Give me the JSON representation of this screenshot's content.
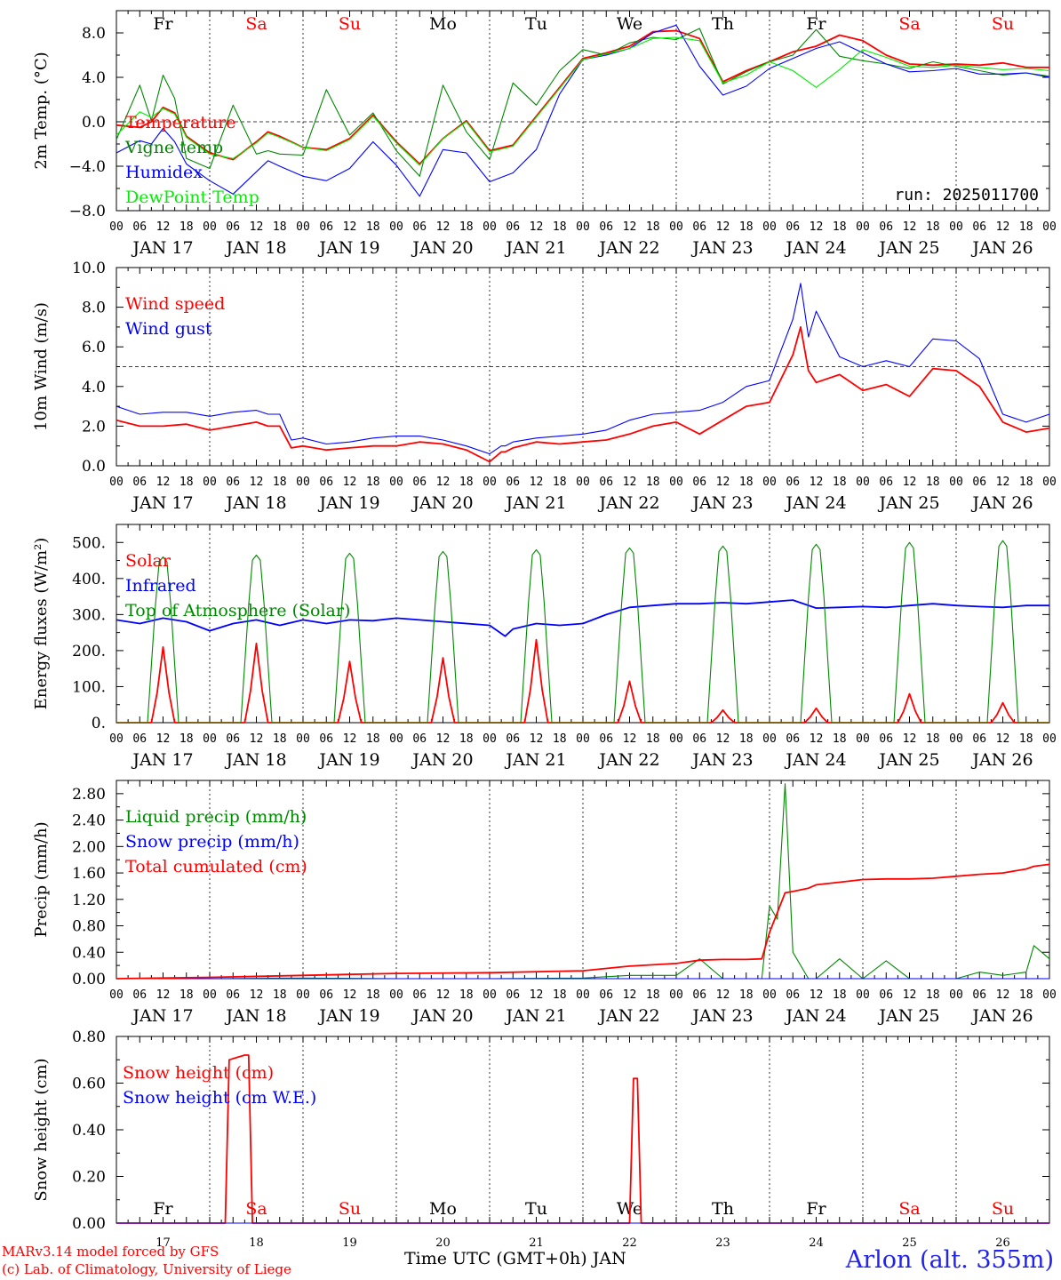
{
  "colors": {
    "red": "#ff0000",
    "blue": "#0000ff",
    "green": "#008800",
    "lime": "#00ee00",
    "black": "#000000",
    "axis": "#000000"
  },
  "days": [
    "Fr",
    "Sa",
    "Su",
    "Mo",
    "Tu",
    "We",
    "Th",
    "Fr",
    "Sa",
    "Su"
  ],
  "weekend_days": [
    1,
    2,
    8,
    9
  ],
  "date_labels": [
    "JAN 17",
    "JAN 18",
    "JAN 19",
    "JAN 20",
    "JAN 21",
    "JAN 22",
    "JAN 23",
    "JAN 24",
    "JAN 25",
    "JAN 26"
  ],
  "day_numbers": [
    "17",
    "18",
    "19",
    "20",
    "21",
    "22",
    "23",
    "24",
    "25",
    "26"
  ],
  "hour_ticks": [
    "00",
    "06",
    "12",
    "18"
  ],
  "final_hour_tick": "00",
  "footer": {
    "credit_line1": "MARv3.14 model forced by GFS",
    "credit_line2": "(c) Lab. of Climatology, University of Liege",
    "x_title": "Time UTC (GMT+0h) JAN",
    "station": "Arlon (alt. 355m)"
  },
  "chart_data": [
    {
      "type": "line",
      "ylabel": "2m Temp. (°C)",
      "ylim": [
        -8,
        10
      ],
      "y_ticks": [
        -8,
        -4,
        0,
        4,
        8
      ],
      "y_tick_labels": [
        "−8.0",
        "−4.0",
        "0.0",
        "4.0",
        "8.0"
      ],
      "ref_line": 0,
      "run_label": "run: 2025011700",
      "x_hours": [
        0,
        6,
        9,
        12,
        15,
        18,
        24,
        30,
        36,
        39,
        42,
        48,
        54,
        60,
        66,
        72,
        78,
        84,
        90,
        96,
        102,
        108,
        114,
        120,
        126,
        132,
        138,
        144,
        150,
        156,
        162,
        168,
        174,
        180,
        186,
        192,
        198,
        204,
        210,
        216,
        222,
        228,
        234,
        240
      ],
      "series": [
        {
          "name": "Temperature",
          "color": "red",
          "values": [
            -0.3,
            -0.5,
            0.0,
            1.3,
            0.8,
            -1.3,
            -2.8,
            -3.4,
            -1.8,
            -0.9,
            -1.3,
            -2.3,
            -2.5,
            -1.5,
            0.6,
            -1.8,
            -3.8,
            -1.5,
            0.1,
            -2.6,
            -2.1,
            0.5,
            3.1,
            5.7,
            6.2,
            6.8,
            8.1,
            8.2,
            7.5,
            3.6,
            4.6,
            5.4,
            6.3,
            6.8,
            7.8,
            7.3,
            6.0,
            5.2,
            5.1,
            5.2,
            5.1,
            5.3,
            4.9,
            4.9
          ]
        },
        {
          "name": "Vigne temp",
          "color": "green",
          "values": [
            -1.6,
            3.3,
            0.1,
            4.2,
            2.1,
            -3.3,
            -4.2,
            1.5,
            -2.9,
            -2.6,
            -2.9,
            -3.0,
            2.9,
            -1.2,
            0.8,
            -2.6,
            -4.9,
            3.3,
            -0.9,
            -3.4,
            3.5,
            1.5,
            4.6,
            6.5,
            6.0,
            7.1,
            7.6,
            7.4,
            8.4,
            3.4,
            4.5,
            5.4,
            6.0,
            8.3,
            5.9,
            5.5,
            5.2,
            4.8,
            5.4,
            5.0,
            4.6,
            4.2,
            4.4,
            4.1
          ]
        },
        {
          "name": "Humidex",
          "color": "blue",
          "values": [
            -2.8,
            -1.7,
            -2.0,
            -0.6,
            -1.8,
            -3.8,
            -5.3,
            -6.5,
            -4.5,
            -3.5,
            -4.0,
            -4.9,
            -5.3,
            -4.2,
            -1.8,
            -3.9,
            -6.7,
            -2.5,
            -2.8,
            -5.4,
            -4.6,
            -2.5,
            2.5,
            5.6,
            6.0,
            6.6,
            8.0,
            8.7,
            5.0,
            2.4,
            3.2,
            4.8,
            5.7,
            6.6,
            7.2,
            6.2,
            5.2,
            4.5,
            4.6,
            4.8,
            4.3,
            4.3,
            4.4,
            4.0
          ]
        },
        {
          "name": "DewPoint Temp",
          "color": "lime",
          "values": [
            -1.2,
            0.9,
            0.4,
            1.2,
            0.7,
            -1.4,
            -2.9,
            -3.3,
            -1.9,
            -1.0,
            -1.4,
            -2.3,
            -2.6,
            -1.6,
            0.5,
            -1.9,
            -3.9,
            -1.5,
            0.0,
            -2.7,
            -2.2,
            0.4,
            3.0,
            5.6,
            6.1,
            6.6,
            7.5,
            7.6,
            7.3,
            3.5,
            4.2,
            5.4,
            4.6,
            3.1,
            4.7,
            6.5,
            5.8,
            5.0,
            4.9,
            5.1,
            4.9,
            4.7,
            4.8,
            4.6
          ]
        }
      ]
    },
    {
      "type": "line",
      "ylabel": "10m Wind (m/s)",
      "ylim": [
        0,
        10
      ],
      "y_ticks": [
        0,
        2,
        4,
        6,
        8,
        10
      ],
      "y_tick_labels": [
        "0.0",
        "2.0",
        "4.0",
        "6.0",
        "8.0",
        "10.0"
      ],
      "ref_line": 5,
      "x_hours": [
        0,
        6,
        12,
        18,
        24,
        30,
        36,
        39,
        42,
        45,
        48,
        54,
        60,
        66,
        72,
        78,
        84,
        90,
        96,
        99,
        100,
        102,
        108,
        114,
        120,
        126,
        132,
        138,
        144,
        150,
        156,
        162,
        168,
        174,
        176,
        178,
        180,
        186,
        192,
        198,
        204,
        210,
        216,
        222,
        228,
        234,
        240
      ],
      "series": [
        {
          "name": "Wind speed",
          "color": "red",
          "values": [
            2.3,
            2.0,
            2.0,
            2.1,
            1.8,
            2.0,
            2.2,
            2.0,
            2.0,
            0.9,
            1.0,
            0.8,
            0.9,
            1.0,
            1.0,
            1.2,
            1.1,
            0.8,
            0.2,
            0.7,
            0.7,
            0.9,
            1.2,
            1.1,
            1.2,
            1.3,
            1.6,
            2.0,
            2.2,
            1.6,
            2.3,
            3.0,
            3.2,
            5.6,
            7.0,
            4.8,
            4.2,
            4.6,
            3.8,
            4.1,
            3.5,
            4.9,
            4.8,
            4.0,
            2.2,
            1.7,
            1.9
          ]
        },
        {
          "name": "Wind gust",
          "color": "blue",
          "values": [
            3.0,
            2.6,
            2.7,
            2.7,
            2.5,
            2.7,
            2.8,
            2.6,
            2.6,
            1.3,
            1.4,
            1.1,
            1.2,
            1.4,
            1.5,
            1.5,
            1.3,
            1.0,
            0.6,
            1.0,
            1.0,
            1.2,
            1.4,
            1.5,
            1.6,
            1.8,
            2.3,
            2.6,
            2.7,
            2.8,
            3.2,
            4.0,
            4.3,
            7.4,
            9.2,
            6.5,
            7.8,
            5.5,
            5.0,
            5.3,
            5.0,
            6.4,
            6.3,
            5.4,
            2.6,
            2.2,
            2.6
          ]
        }
      ]
    },
    {
      "type": "line",
      "ylabel": "Energy fluxes (W/m²)",
      "ylim": [
        0,
        550
      ],
      "y_ticks": [
        0,
        100,
        200,
        300,
        400,
        500
      ],
      "y_tick_labels": [
        "0.",
        "100.",
        "200.",
        "300.",
        "400.",
        "500."
      ],
      "daily_peaks": {
        "day_offsets": [
          0,
          24,
          48,
          72,
          96,
          120,
          144,
          168,
          192,
          216
        ],
        "solar": [
          210,
          220,
          170,
          180,
          230,
          115,
          35,
          40,
          80,
          55
        ],
        "toa": [
          460,
          465,
          470,
          475,
          480,
          485,
          490,
          495,
          500,
          505
        ],
        "toa_window": [
          8,
          16
        ],
        "solar_window": [
          9,
          15
        ]
      },
      "x_hours": [
        0,
        6,
        12,
        18,
        24,
        30,
        36,
        42,
        48,
        54,
        60,
        66,
        72,
        78,
        96,
        100,
        102,
        108,
        114,
        120,
        126,
        132,
        138,
        144,
        150,
        156,
        162,
        168,
        174,
        180,
        186,
        192,
        198,
        204,
        210,
        216,
        222,
        228,
        234,
        240
      ],
      "series": [
        {
          "name": "Solar",
          "color": "red",
          "from_peaks": "solar"
        },
        {
          "name": "Infrared",
          "color": "blue",
          "values": [
            285,
            275,
            290,
            280,
            255,
            275,
            285,
            270,
            285,
            275,
            285,
            283,
            290,
            285,
            270,
            240,
            260,
            275,
            270,
            275,
            300,
            320,
            325,
            330,
            330,
            333,
            330,
            335,
            340,
            318,
            320,
            322,
            320,
            325,
            330,
            325,
            322,
            320,
            325,
            325
          ]
        },
        {
          "name": "Top of Atmosphere (Solar)",
          "color": "green",
          "from_peaks": "toa"
        }
      ]
    },
    {
      "type": "line",
      "ylabel": "Precip (mm/h)",
      "ylim": [
        0,
        3.0
      ],
      "y_ticks": [
        0,
        0.4,
        0.8,
        1.2,
        1.6,
        2.0,
        2.4,
        2.8
      ],
      "y_tick_labels": [
        "0.00",
        "0.40",
        "0.80",
        "1.20",
        "1.60",
        "2.00",
        "2.40",
        "2.80"
      ],
      "x_hours": [
        0,
        24,
        48,
        72,
        96,
        120,
        132,
        144,
        150,
        156,
        162,
        166,
        168,
        170,
        172,
        174,
        178,
        180,
        186,
        192,
        198,
        204,
        210,
        216,
        222,
        228,
        234,
        236,
        240
      ],
      "series": [
        {
          "name": "Liquid precip (mm/h)",
          "color": "green",
          "values": [
            0.0,
            0.0,
            0.01,
            0.0,
            0.0,
            0.01,
            0.05,
            0.05,
            0.3,
            0.0,
            0.0,
            0.0,
            1.1,
            0.9,
            2.95,
            0.4,
            0.0,
            0.0,
            0.3,
            0.0,
            0.27,
            0.0,
            0.0,
            0.0,
            0.1,
            0.05,
            0.1,
            0.5,
            0.3
          ]
        },
        {
          "name": "Snow precip (mm/h)",
          "color": "blue",
          "values": [
            0,
            0,
            0,
            0,
            0,
            0,
            0,
            0,
            0,
            0,
            0,
            0,
            0,
            0,
            0,
            0,
            0,
            0,
            0,
            0,
            0,
            0,
            0,
            0,
            0,
            0,
            0,
            0,
            0
          ]
        },
        {
          "name": "Total cumulated (cm)",
          "color": "red",
          "values": [
            0.0,
            0.02,
            0.05,
            0.08,
            0.09,
            0.12,
            0.19,
            0.23,
            0.28,
            0.29,
            0.29,
            0.3,
            0.7,
            1.0,
            1.3,
            1.32,
            1.37,
            1.42,
            1.46,
            1.5,
            1.51,
            1.51,
            1.52,
            1.55,
            1.58,
            1.6,
            1.66,
            1.7,
            1.73
          ]
        }
      ]
    },
    {
      "type": "line",
      "ylabel": "Snow height (cm)",
      "ylim": [
        0,
        0.8
      ],
      "y_ticks": [
        0,
        0.2,
        0.4,
        0.6,
        0.8
      ],
      "y_tick_labels": [
        "0.00",
        "0.20",
        "0.40",
        "0.60",
        "0.80"
      ],
      "x_hours": [
        0,
        28,
        29,
        31,
        33,
        34,
        35,
        132,
        133,
        134,
        135,
        240
      ],
      "series": [
        {
          "name": "Snow height (cm)",
          "color": "red",
          "values": [
            0,
            0,
            0.7,
            0.71,
            0.72,
            0.72,
            0,
            0,
            0.62,
            0.62,
            0,
            0
          ]
        },
        {
          "name": "Snow height (cm W.E.)",
          "color": "blue",
          "values": [
            0,
            0,
            0,
            0,
            0,
            0,
            0,
            0,
            0,
            0,
            0,
            0
          ]
        }
      ]
    }
  ]
}
